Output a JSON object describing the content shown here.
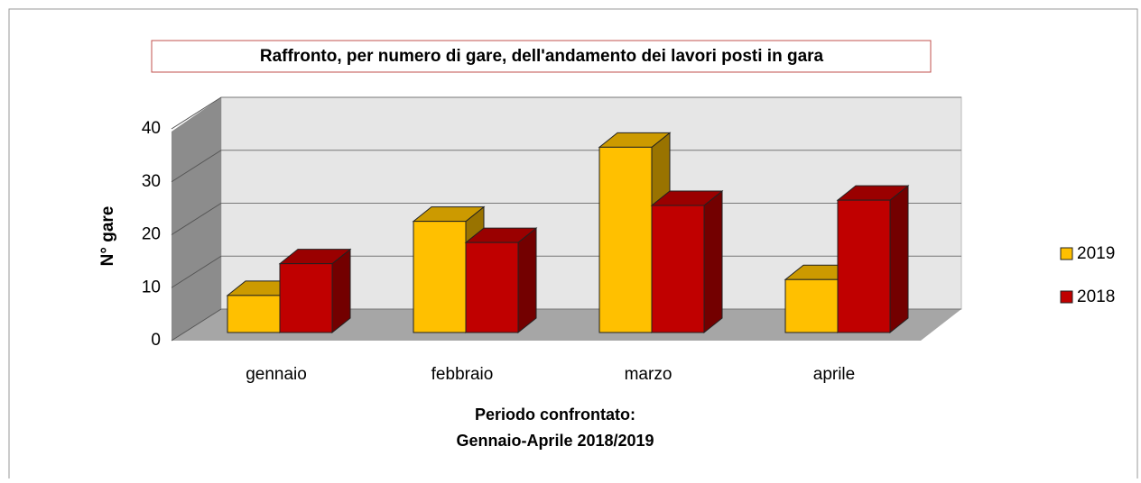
{
  "chart_data": {
    "type": "bar3d",
    "title": "Raffronto, per numero di gare, dell'andamento dei lavori posti in gara",
    "y_label": "N° gare",
    "x_label": [
      "Periodo confrontato:",
      "Gennaio-Aprile 2018/2019"
    ],
    "categories": [
      "gennaio",
      "febbraio",
      "marzo",
      "aprile"
    ],
    "series": [
      {
        "name": "2019",
        "color": "#ffc000",
        "values": [
          7,
          21,
          35,
          10
        ]
      },
      {
        "name": "2018",
        "color": "#c00000",
        "values": [
          13,
          17,
          24,
          25
        ]
      }
    ],
    "ylim": [
      0,
      40
    ],
    "yticks": [
      0,
      10,
      20,
      30,
      40
    ],
    "grid": true,
    "legend": "right"
  }
}
